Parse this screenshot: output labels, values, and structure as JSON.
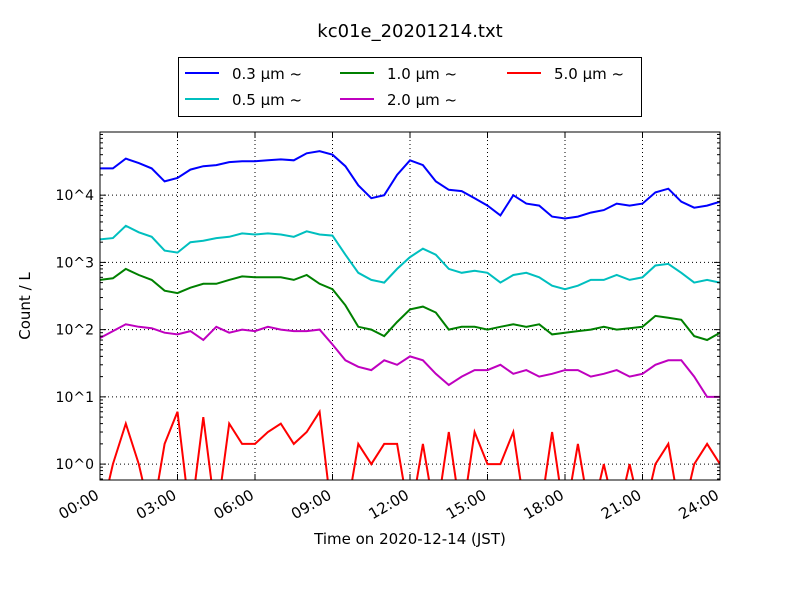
{
  "chart_data": {
    "type": "line",
    "title": "kc01e_20201214.txt",
    "xlabel": "Time on 2020-12-14 (JST)",
    "ylabel": "Count / L",
    "yscale": "log",
    "xlim": [
      0,
      24
    ],
    "ylim": [
      0.58,
      87000
    ],
    "grid": true,
    "legend_placement": "upper-center",
    "x_tick_values": [
      0,
      3,
      6,
      9,
      12,
      15,
      18,
      21,
      24
    ],
    "x_tick_labels": [
      "00:00",
      "03:00",
      "06:00",
      "09:00",
      "12:00",
      "15:00",
      "18:00",
      "21:00",
      "24:00"
    ],
    "y_tick_values": [
      1,
      10,
      100,
      1000,
      10000
    ],
    "y_tick_labels": [
      "10^0",
      "10^1",
      "10^2",
      "10^3",
      "10^4"
    ],
    "x_hours": [
      0,
      0.5,
      1,
      1.5,
      2,
      2.5,
      3,
      3.5,
      4,
      4.5,
      5,
      5.5,
      6,
      6.5,
      7,
      7.5,
      8,
      8.5,
      9,
      9.5,
      10,
      10.5,
      11,
      11.5,
      12,
      12.5,
      13,
      13.5,
      14,
      14.5,
      15,
      15.5,
      16,
      16.5,
      17,
      17.5,
      18,
      18.5,
      19,
      19.5,
      20,
      20.5,
      21,
      21.5,
      22,
      22.5,
      23,
      23.5,
      24
    ],
    "series": [
      {
        "name": "0.3 μm ~",
        "color": "#0000ff",
        "values": [
          25000,
          25000,
          35000,
          30000,
          25000,
          16000,
          18000,
          24000,
          27000,
          28000,
          31000,
          32000,
          32000,
          33000,
          34000,
          33000,
          42000,
          45000,
          40000,
          27000,
          14000,
          9000,
          10000,
          20000,
          33000,
          28000,
          16000,
          12000,
          11500,
          9000,
          7000,
          5000,
          10000,
          7500,
          7000,
          4800,
          4500,
          4800,
          5500,
          6000,
          7500,
          7000,
          7500,
          11000,
          12500,
          8000,
          6500,
          7000,
          8000
        ]
      },
      {
        "name": "0.5 μm ~",
        "color": "#00bfbf",
        "values": [
          2200,
          2300,
          3500,
          2800,
          2400,
          1500,
          1400,
          2000,
          2100,
          2300,
          2400,
          2700,
          2600,
          2700,
          2600,
          2400,
          2900,
          2600,
          2500,
          1300,
          700,
          550,
          500,
          800,
          1200,
          1600,
          1300,
          800,
          700,
          750,
          700,
          500,
          650,
          700,
          600,
          450,
          400,
          450,
          550,
          550,
          650,
          550,
          600,
          900,
          950,
          700,
          500,
          550,
          500
        ]
      },
      {
        "name": "1.0 μm ~",
        "color": "#008000",
        "values": [
          550,
          580,
          800,
          650,
          550,
          380,
          350,
          420,
          480,
          480,
          550,
          620,
          600,
          600,
          600,
          550,
          650,
          480,
          400,
          230,
          110,
          100,
          80,
          130,
          200,
          220,
          180,
          100,
          110,
          110,
          100,
          110,
          120,
          110,
          120,
          85,
          90,
          95,
          100,
          110,
          100,
          105,
          110,
          160,
          150,
          140,
          80,
          70,
          90
        ]
      },
      {
        "name": "2.0 μm ~",
        "color": "#bf00bf",
        "values": [
          75,
          95,
          120,
          110,
          105,
          90,
          85,
          95,
          70,
          110,
          90,
          100,
          95,
          110,
          100,
          95,
          95,
          100,
          60,
          35,
          28,
          25,
          35,
          30,
          40,
          35,
          22,
          15,
          20,
          25,
          25,
          30,
          22,
          25,
          20,
          22,
          25,
          25,
          20,
          22,
          25,
          20,
          22,
          30,
          35,
          35,
          20,
          10,
          10
        ]
      },
      {
        "name": "5.0 μm ~",
        "color": "#ff0000",
        "values": [
          0,
          1,
          4,
          1,
          0,
          2,
          6,
          0,
          5,
          0,
          4,
          2,
          2,
          3,
          4,
          2,
          3,
          6,
          0,
          0,
          2,
          1,
          2,
          2,
          0,
          2,
          0,
          3,
          0,
          3,
          1,
          1,
          3,
          0,
          0,
          3,
          0,
          2,
          0,
          1,
          0,
          1,
          0,
          1,
          2,
          0,
          1,
          2,
          1
        ]
      }
    ]
  }
}
